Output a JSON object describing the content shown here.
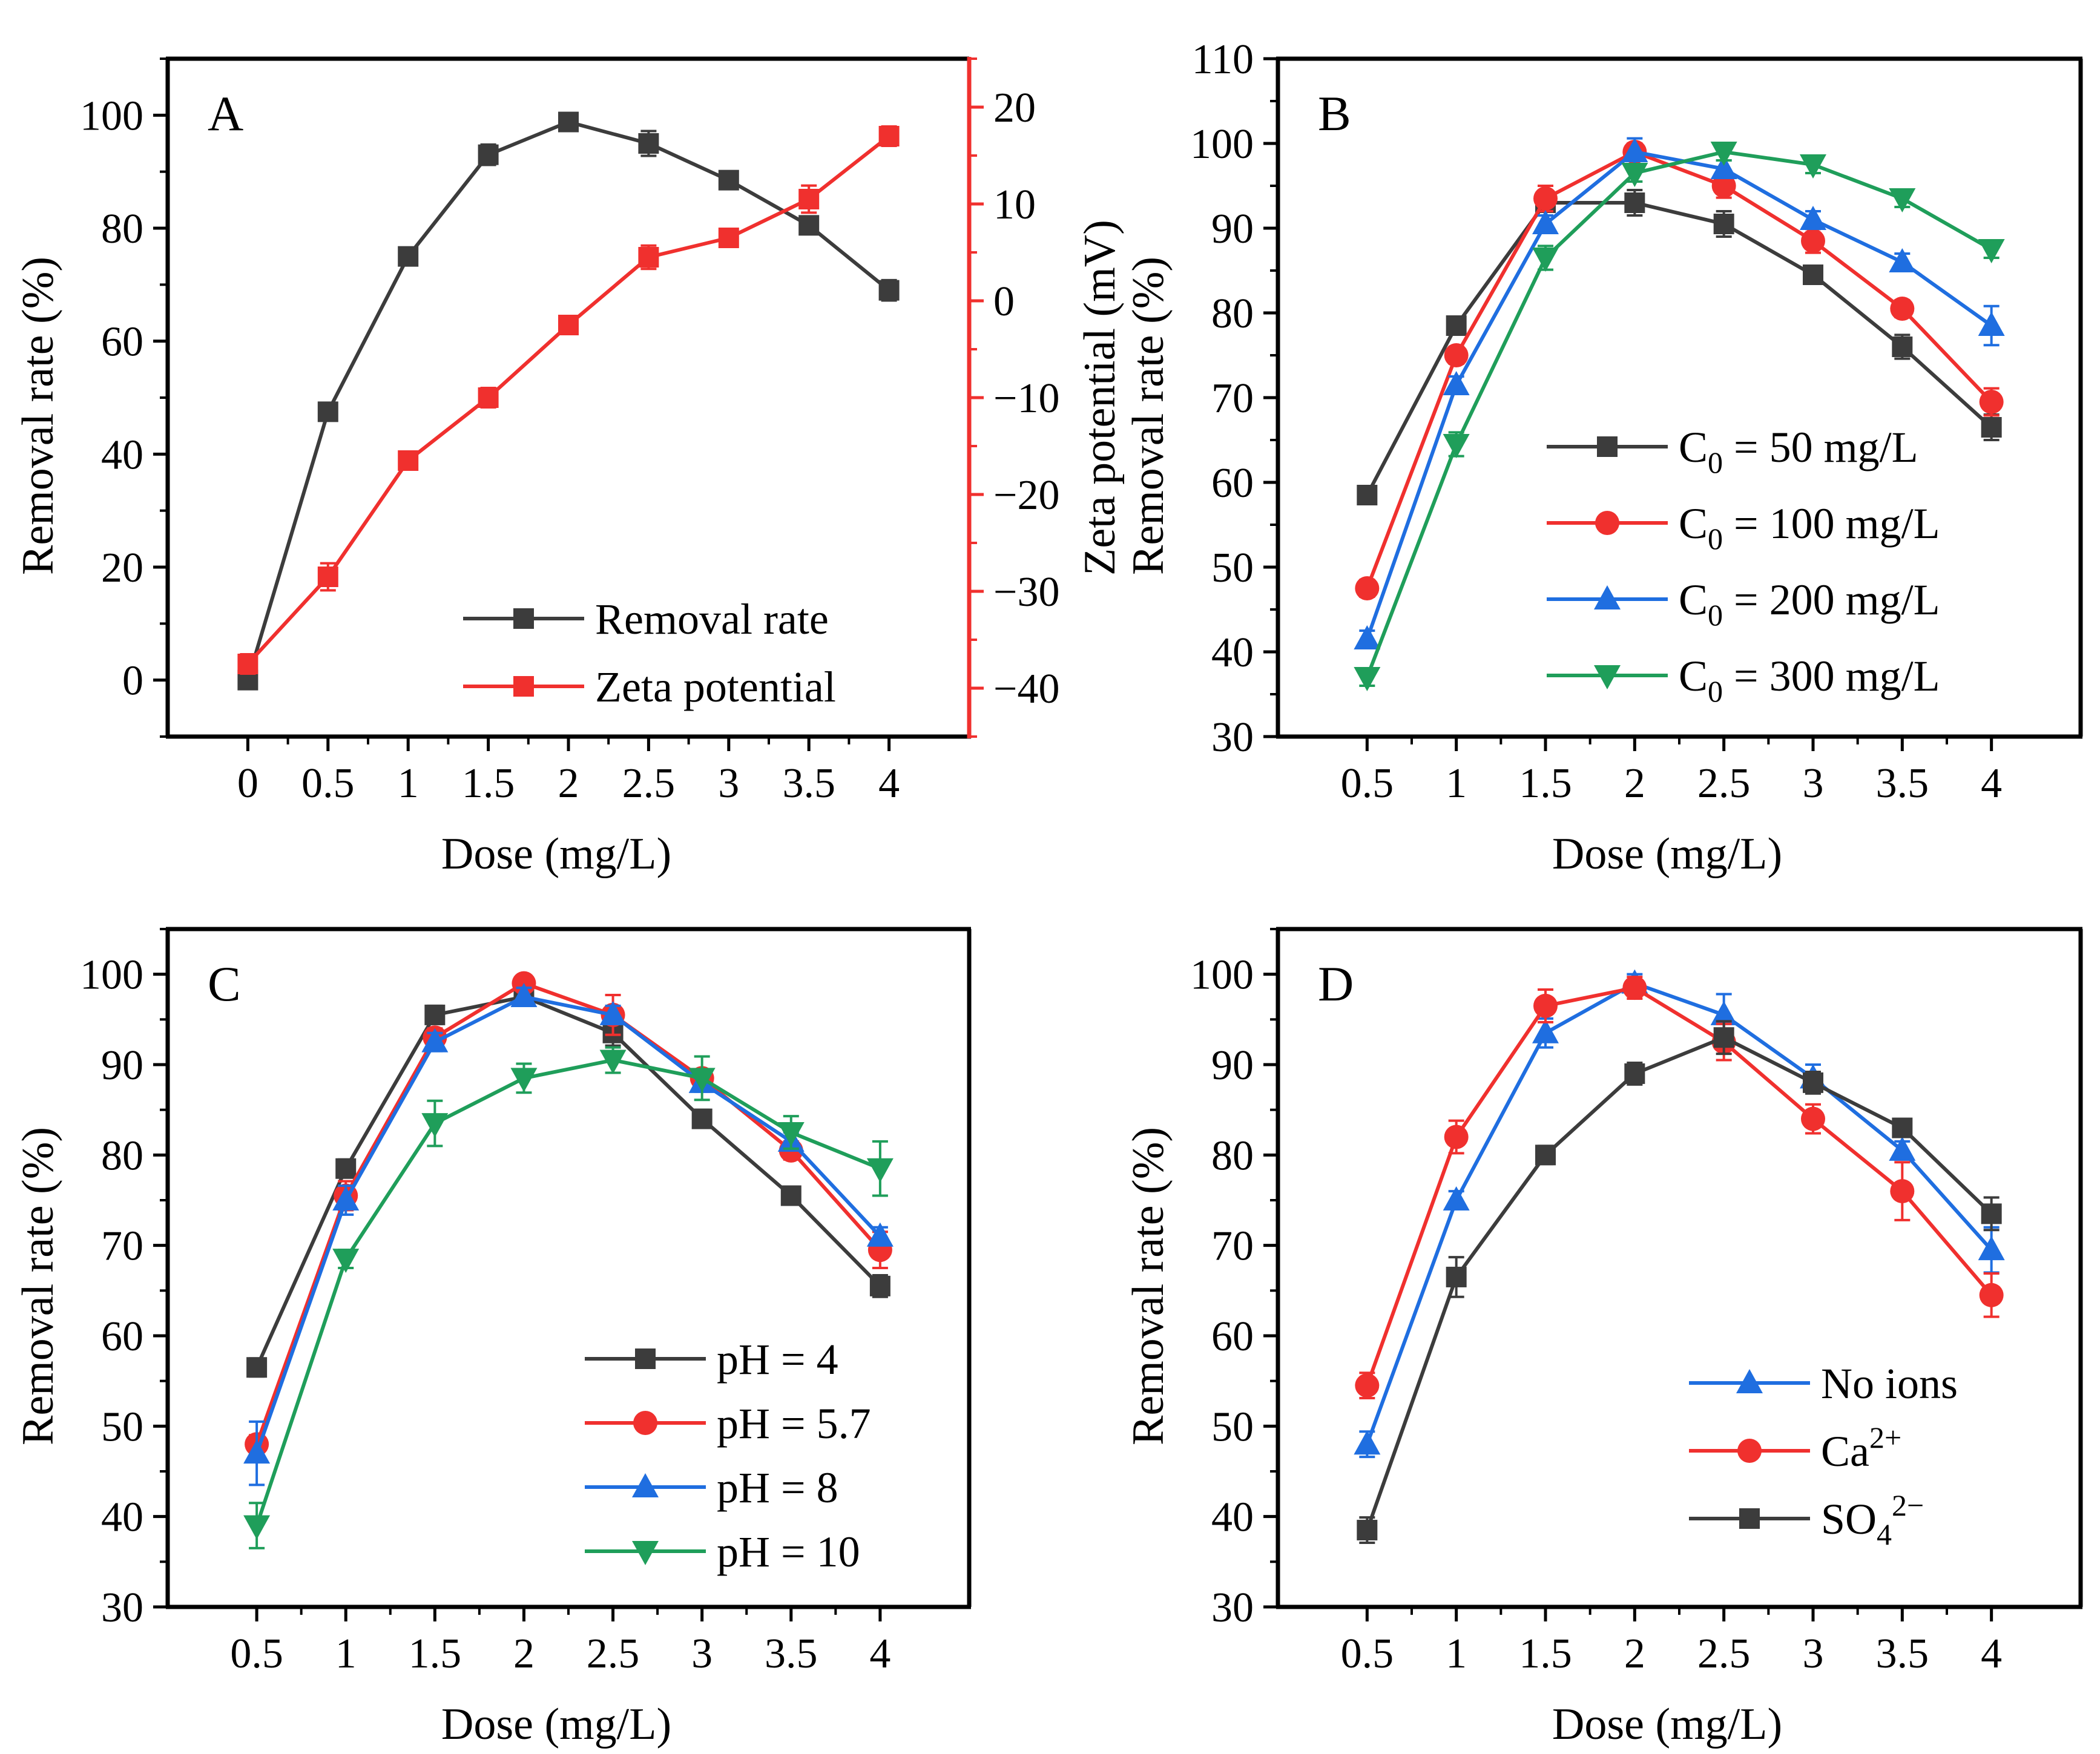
{
  "colors": {
    "black": "#3c3c3c",
    "red": "#f0302e",
    "blue": "#1f6ee0",
    "green": "#1f9e5a",
    "axis": "#000000",
    "axis_red": "#f0302e"
  },
  "chart_data": [
    {
      "panel": "A",
      "type": "line",
      "xlabel": "Dose (mg/L)",
      "ylabel": "Removal rate (%)",
      "y2label": "Zeta potential (mV)",
      "x": [
        0,
        0.5,
        1,
        1.5,
        2,
        2.5,
        3,
        3.5,
        4
      ],
      "xticklabels": [
        "0",
        "0.5",
        "1",
        "1.5",
        "2",
        "2.5",
        "3",
        "3.5",
        "4"
      ],
      "xlim": [
        -0.5,
        4.5
      ],
      "ylim": [
        -10,
        110
      ],
      "yticks": [
        0,
        20,
        40,
        60,
        80,
        100
      ],
      "y2lim": [
        -45,
        25
      ],
      "y2ticks": [
        -40,
        -30,
        -20,
        -10,
        0,
        10,
        20
      ],
      "legend_position": "bottom-right",
      "series": [
        {
          "name": "Removal rate",
          "axis": "left",
          "color": "#3c3c3c",
          "marker": "square",
          "values": [
            0,
            47.5,
            75,
            93,
            98.8,
            95,
            88.5,
            80.5,
            69
          ],
          "errors": [
            0.5,
            1.2,
            1.0,
            1.8,
            0.8,
            2.2,
            1.4,
            1.0,
            1.8
          ]
        },
        {
          "name": "Zeta potential",
          "axis": "right",
          "color": "#f0302e",
          "marker": "square",
          "values": [
            -37.5,
            -28.5,
            -16.5,
            -10,
            -2.5,
            4.5,
            6.5,
            10.5,
            17
          ],
          "errors": [
            1.0,
            1.4,
            0.9,
            1.0,
            0.6,
            1.2,
            0.6,
            1.4,
            1.0
          ]
        }
      ]
    },
    {
      "panel": "B",
      "type": "line",
      "xlabel": "Dose (mg/L)",
      "ylabel": "Removal rate (%)",
      "x": [
        0.5,
        1,
        1.5,
        2,
        2.5,
        3,
        3.5,
        4
      ],
      "xticklabels": [
        "0.5",
        "1",
        "1.5",
        "2",
        "2.5",
        "3",
        "3.5",
        "4"
      ],
      "xlim": [
        0,
        4.5
      ],
      "ylim": [
        30,
        110
      ],
      "yticks": [
        30,
        40,
        50,
        60,
        70,
        80,
        90,
        100,
        110
      ],
      "legend_position": "bottom-right",
      "series": [
        {
          "name": "C",
          "subscript": "0",
          "suffix": " = 50 mg/L",
          "color": "#3c3c3c",
          "marker": "square",
          "values": [
            58.5,
            78.5,
            93,
            93,
            90.5,
            84.5,
            76,
            66.5
          ],
          "errors": [
            1.0,
            1.0,
            1.0,
            1.5,
            1.5,
            1.0,
            1.4,
            1.5
          ]
        },
        {
          "name": "C",
          "subscript": "0",
          "suffix": " = 100 mg/L",
          "color": "#f0302e",
          "marker": "circle",
          "values": [
            47.5,
            75,
            93.5,
            99,
            95,
            88.5,
            80.5,
            69.5
          ],
          "errors": [
            1.0,
            1.0,
            1.5,
            1.0,
            1.4,
            1.4,
            1.0,
            1.6
          ]
        },
        {
          "name": "C",
          "subscript": "0",
          "suffix": " = 200 mg/L",
          "color": "#1f6ee0",
          "marker": "triangle-up",
          "values": [
            41.5,
            71.5,
            90.5,
            99,
            97,
            91,
            86,
            78.5
          ],
          "errors": [
            1.0,
            1.0,
            1.0,
            1.6,
            1.0,
            1.0,
            1.0,
            2.3
          ]
        },
        {
          "name": "C",
          "subscript": "0",
          "suffix": " = 300 mg/L",
          "color": "#1f9e5a",
          "marker": "triangle-down",
          "values": [
            37,
            64.5,
            86.5,
            96.5,
            99,
            97.5,
            93.5,
            87.5
          ],
          "errors": [
            1.0,
            1.4,
            1.4,
            1.0,
            1.0,
            1.0,
            1.0,
            1.0
          ]
        }
      ]
    },
    {
      "panel": "C",
      "type": "line",
      "xlabel": "Dose (mg/L)",
      "ylabel": "Removal rate (%)",
      "x": [
        0.5,
        1,
        1.5,
        2,
        2.5,
        3,
        3.5,
        4
      ],
      "xticklabels": [
        "0.5",
        "1",
        "1.5",
        "2",
        "2.5",
        "3",
        "3.5",
        "4"
      ],
      "xlim": [
        0,
        4.5
      ],
      "ylim": [
        30,
        105
      ],
      "yticks": [
        30,
        40,
        50,
        60,
        70,
        80,
        90,
        100
      ],
      "legend_position": "bottom-right",
      "series": [
        {
          "name": "pH = 4",
          "color": "#3c3c3c",
          "marker": "square",
          "values": [
            56.5,
            78.5,
            95.5,
            97.5,
            93.5,
            84,
            75.5,
            65.5
          ],
          "errors": [
            1.0,
            1.0,
            1.0,
            1.0,
            1.4,
            1.0,
            1.0,
            1.2
          ]
        },
        {
          "name": "pH = 5.7",
          "color": "#f0302e",
          "marker": "circle",
          "values": [
            48,
            75.5,
            93,
            99,
            95.5,
            88.5,
            80.5,
            69.5
          ],
          "errors": [
            1.0,
            1.6,
            1.0,
            0.8,
            2.2,
            1.0,
            1.0,
            2.0
          ]
        },
        {
          "name": "pH = 8",
          "color": "#1f6ee0",
          "marker": "triangle-up",
          "values": [
            47,
            75,
            92.5,
            97.5,
            95.5,
            88,
            81.5,
            71
          ],
          "errors": [
            3.5,
            1.6,
            1.0,
            1.0,
            1.0,
            1.0,
            1.0,
            1.0
          ]
        },
        {
          "name": "pH = 10",
          "color": "#1f9e5a",
          "marker": "triangle-down",
          "values": [
            39,
            68.5,
            83.5,
            88.5,
            90.5,
            88.5,
            82.5,
            78.5
          ],
          "errors": [
            2.5,
            1.0,
            2.5,
            1.6,
            1.4,
            2.4,
            1.8,
            3.0
          ]
        }
      ]
    },
    {
      "panel": "D",
      "type": "line",
      "xlabel": "Dose (mg/L)",
      "ylabel": "Removal rate (%)",
      "x": [
        0.5,
        1,
        1.5,
        2,
        2.5,
        3,
        3.5,
        4
      ],
      "xticklabels": [
        "0.5",
        "1",
        "1.5",
        "2",
        "2.5",
        "3",
        "3.5",
        "4"
      ],
      "xlim": [
        0,
        4.5
      ],
      "ylim": [
        30,
        105
      ],
      "yticks": [
        30,
        40,
        50,
        60,
        70,
        80,
        90,
        100
      ],
      "legend_position": "bottom-right",
      "series": [
        {
          "name": "No ions",
          "color": "#1f6ee0",
          "marker": "triangle-up",
          "values": [
            48,
            75,
            93.5,
            99,
            95.5,
            88.5,
            80.5,
            69.5
          ],
          "errors": [
            1.4,
            1.0,
            1.6,
            1.0,
            2.3,
            1.5,
            1.0,
            2.5
          ]
        },
        {
          "name": "Ca",
          "superscript": "2+",
          "color": "#f0302e",
          "marker": "circle",
          "values": [
            54.5,
            82,
            96.5,
            98.5,
            92.5,
            84,
            76,
            64.5
          ],
          "errors": [
            1.4,
            1.8,
            1.8,
            1.2,
            2.0,
            1.6,
            3.2,
            2.4
          ]
        },
        {
          "name": "SO",
          "subscript": "4",
          "superscript": "2−",
          "color": "#3c3c3c",
          "marker": "square",
          "values": [
            38.5,
            66.5,
            80,
            89,
            93,
            88,
            83,
            73.5
          ],
          "errors": [
            1.4,
            2.2,
            1.0,
            1.2,
            1.8,
            1.2,
            1.0,
            1.8
          ]
        }
      ]
    }
  ]
}
